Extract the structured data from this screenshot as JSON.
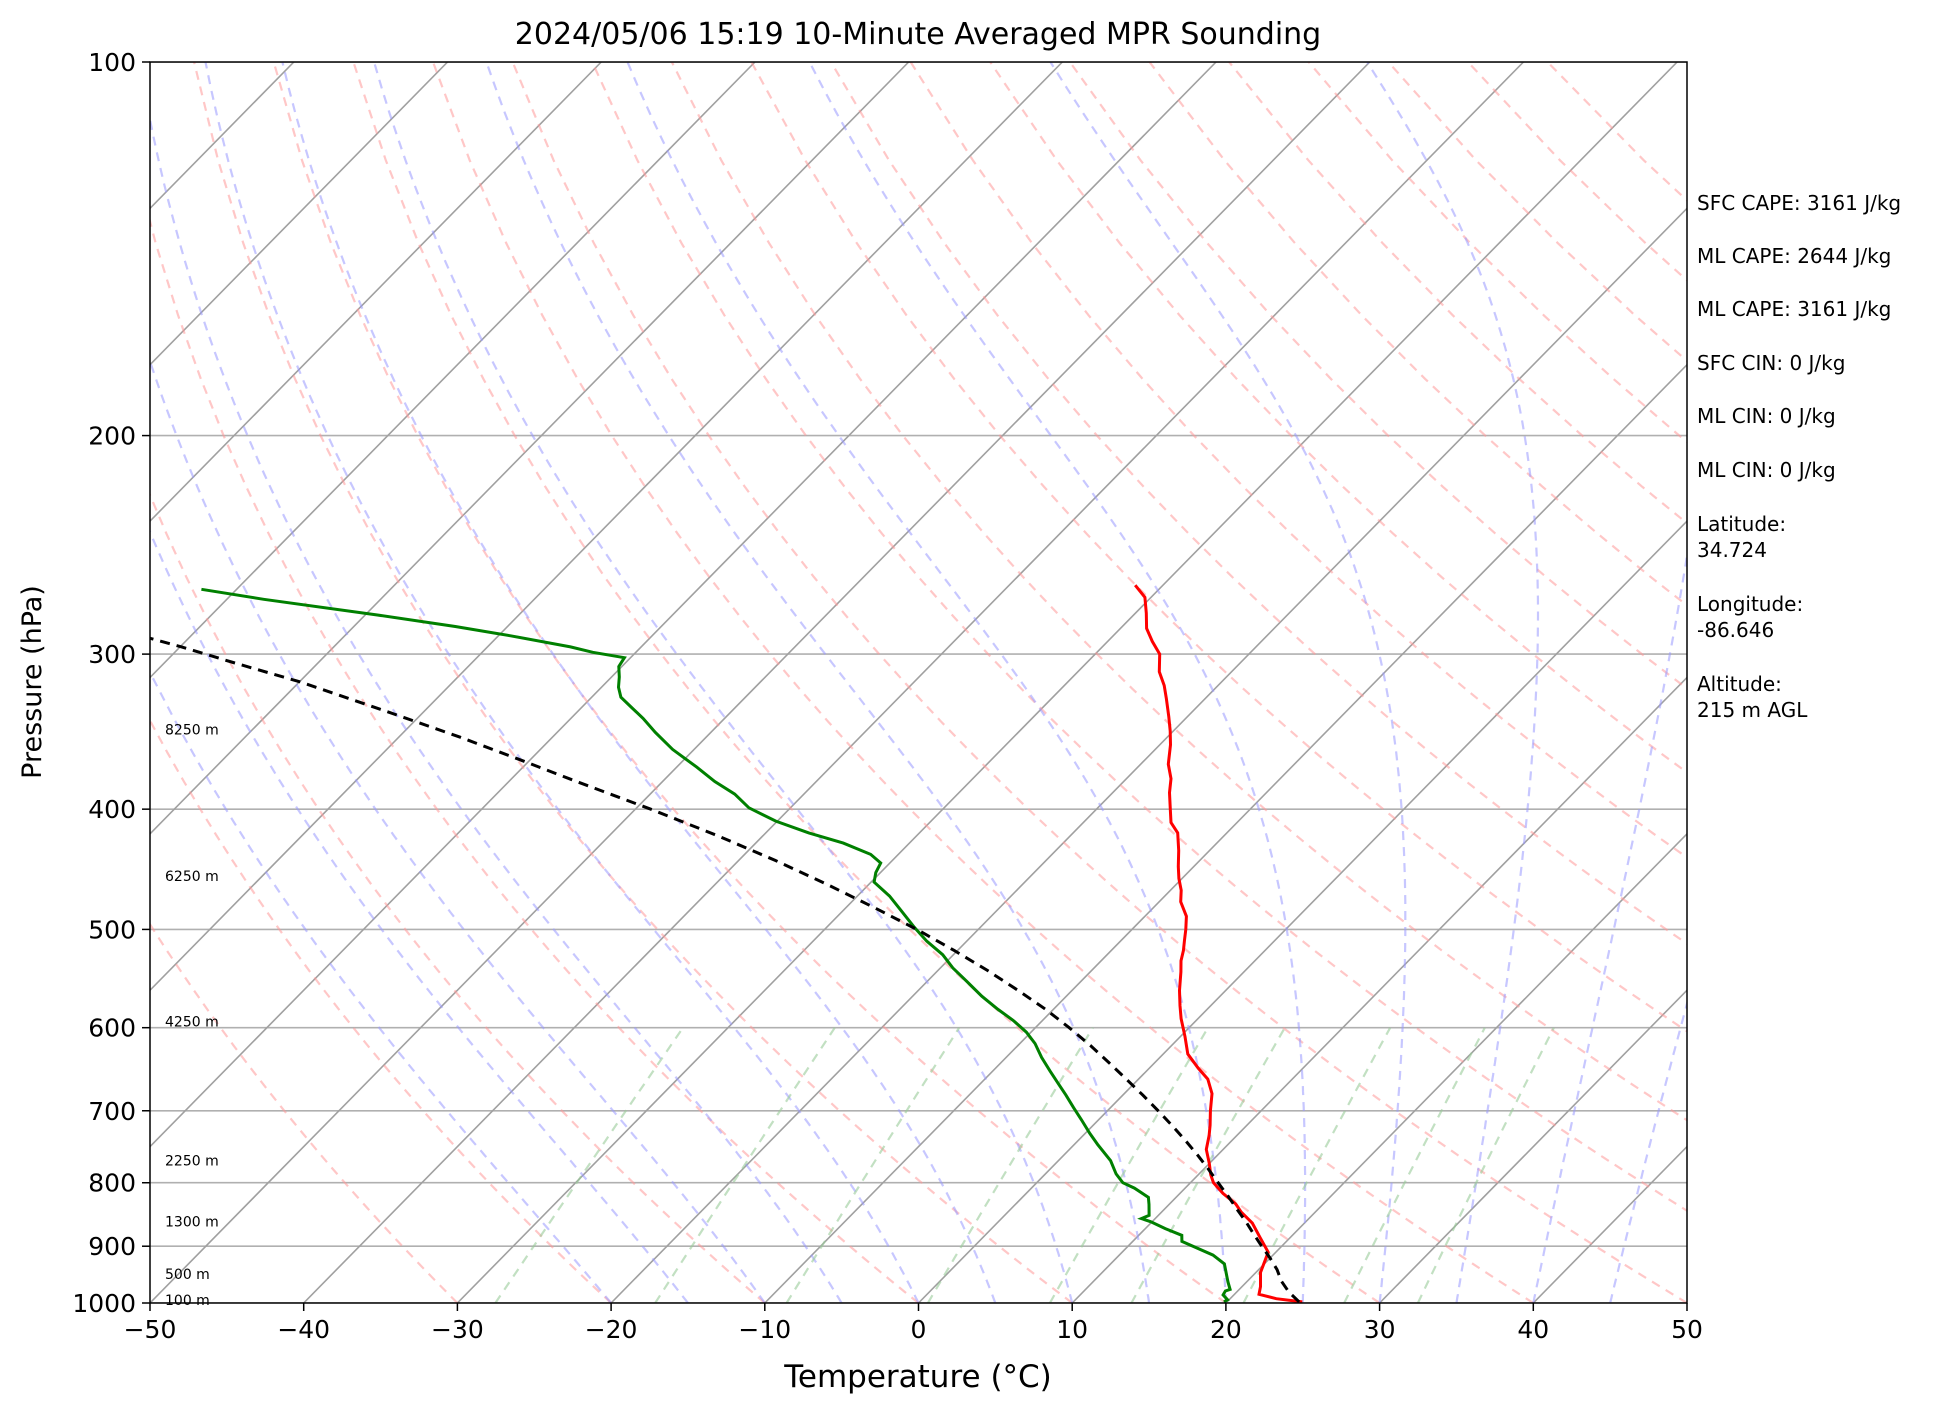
{
  "chart_data": {
    "type": "skew-t",
    "title": "2024/05/06 15:19 10-Minute Averaged MPR Sounding",
    "xlabel": "Temperature (°C)",
    "ylabel": "Pressure (hPa)",
    "xlim": [
      -50,
      50
    ],
    "ylim": [
      1000,
      100
    ],
    "y_scale": "log",
    "x_ticks": [
      "−50",
      "−40",
      "−30",
      "−20",
      "−10",
      "0",
      "10",
      "20",
      "30",
      "40",
      "50"
    ],
    "y_ticks": [
      {
        "p": 100,
        "label": "100"
      },
      {
        "p": 200,
        "label": "200"
      },
      {
        "p": 300,
        "label": "300"
      },
      {
        "p": 400,
        "label": "400"
      },
      {
        "p": 500,
        "label": "500"
      },
      {
        "p": 600,
        "label": "600"
      },
      {
        "p": 700,
        "label": "700"
      },
      {
        "p": 800,
        "label": "800"
      },
      {
        "p": 900,
        "label": "900"
      },
      {
        "p": 1000,
        "label": "1000"
      }
    ],
    "grid": true,
    "colors": {
      "temperature": "#ff0000",
      "dewpoint": "#008000",
      "parcel": "#000000",
      "dry_adiabats": "#ff9999",
      "moist_adiabats": "#9999ff",
      "mixing_ratio": "#99cc99",
      "isotherms": "#a0a0a0"
    },
    "height_labels": [
      {
        "p": 345,
        "label": "8250 m"
      },
      {
        "p": 453,
        "label": "6250 m"
      },
      {
        "p": 593,
        "label": "4250 m"
      },
      {
        "p": 768,
        "label": "2250 m"
      },
      {
        "p": 860,
        "label": "1300 m"
      },
      {
        "p": 948,
        "label": "500 m"
      },
      {
        "p": 994,
        "label": "100 m"
      }
    ],
    "series": [
      {
        "key": "temperature",
        "points": [
          [
            24.9,
            998
          ],
          [
            23,
            992
          ],
          [
            21.6,
            984
          ],
          [
            21.2,
            970
          ],
          [
            20.3,
            945
          ],
          [
            19.5,
            910
          ],
          [
            18,
            885
          ],
          [
            16.6,
            862
          ],
          [
            15.2,
            845
          ],
          [
            14.3,
            832
          ],
          [
            12.8,
            816
          ],
          [
            11.5,
            800
          ],
          [
            10.8,
            788
          ],
          [
            10,
            772
          ],
          [
            8.9,
            752
          ],
          [
            8.2,
            733
          ],
          [
            7.6,
            719
          ],
          [
            6.7,
            700
          ],
          [
            5.7,
            678
          ],
          [
            4.5,
            660
          ],
          [
            3.2,
            647
          ],
          [
            1.6,
            630
          ],
          [
            0.3,
            610
          ],
          [
            -1.1,
            590
          ],
          [
            -2,
            576
          ],
          [
            -3,
            560
          ],
          [
            -4.1,
            541
          ],
          [
            -4.8,
            530
          ],
          [
            -5.3,
            520
          ],
          [
            -5.9,
            510
          ],
          [
            -6.5,
            500
          ],
          [
            -7.3,
            488
          ],
          [
            -8.6,
            475
          ],
          [
            -9.3,
            465
          ],
          [
            -10.2,
            455
          ],
          [
            -11,
            445
          ],
          [
            -12,
            432
          ],
          [
            -13.2,
            418
          ],
          [
            -14.3,
            410
          ],
          [
            -15.2,
            400
          ],
          [
            -16.3,
            388
          ],
          [
            -17.1,
            378
          ],
          [
            -18.2,
            368
          ],
          [
            -19.3,
            355
          ],
          [
            -20.2,
            346
          ],
          [
            -21.2,
            337
          ],
          [
            -22.5,
            326
          ],
          [
            -23.5,
            318
          ],
          [
            -24.7,
            310
          ],
          [
            -25.8,
            300
          ],
          [
            -27.1,
            293
          ],
          [
            -28.3,
            286
          ],
          [
            -29.3,
            278
          ],
          [
            -30.4,
            270
          ],
          [
            -31.8,
            264
          ]
        ]
      },
      {
        "key": "dewpoint",
        "points": [
          [
            19.8,
            998
          ],
          [
            19.9,
            994
          ],
          [
            19.3,
            985
          ],
          [
            19.2,
            978
          ],
          [
            19.4,
            975
          ],
          [
            18.8,
            962
          ],
          [
            18.5,
            955
          ],
          [
            17.4,
            930
          ],
          [
            16.1,
            915
          ],
          [
            13.2,
            892
          ],
          [
            12.8,
            882
          ],
          [
            11.3,
            871
          ],
          [
            9.9,
            860
          ],
          [
            9.1,
            855
          ],
          [
            9.4,
            850
          ],
          [
            8.7,
            833
          ],
          [
            8.2,
            822
          ],
          [
            6.7,
            808
          ],
          [
            5.6,
            800
          ],
          [
            4.6,
            787
          ],
          [
            3.4,
            768
          ],
          [
            1.5,
            745
          ],
          [
            0.3,
            730
          ],
          [
            -1.1,
            712
          ],
          [
            -2.4,
            696
          ],
          [
            -3.7,
            680
          ],
          [
            -4.9,
            666
          ],
          [
            -6.3,
            650
          ],
          [
            -7.7,
            634
          ],
          [
            -9,
            618
          ],
          [
            -10.3,
            605
          ],
          [
            -11.9,
            592
          ],
          [
            -13.6,
            580
          ],
          [
            -15.5,
            566
          ],
          [
            -17.5,
            550
          ],
          [
            -19.2,
            537
          ],
          [
            -20.7,
            524
          ],
          [
            -22.6,
            511
          ],
          [
            -24.3,
            498
          ],
          [
            -26.2,
            483
          ],
          [
            -27.9,
            470
          ],
          [
            -29.8,
            458
          ],
          [
            -30.3,
            450
          ],
          [
            -30.6,
            442
          ],
          [
            -31.8,
            435
          ],
          [
            -34.3,
            426
          ],
          [
            -37.2,
            418
          ],
          [
            -40.1,
            409
          ],
          [
            -42.7,
            399
          ],
          [
            -44.5,
            389
          ],
          [
            -46.6,
            380
          ],
          [
            -48.7,
            370
          ],
          [
            -51.4,
            358
          ],
          [
            -53.6,
            347
          ],
          [
            -55.3,
            338
          ],
          [
            -56.8,
            331
          ],
          [
            -58.1,
            325
          ],
          [
            -58.9,
            319
          ],
          [
            -59.5,
            313
          ],
          [
            -60.2,
            307
          ],
          [
            -60.4,
            302
          ],
          [
            -62.8,
            299
          ],
          [
            -64.6,
            296
          ],
          [
            -69.2,
            290
          ],
          [
            -73.4,
            285
          ],
          [
            -79.2,
            279
          ],
          [
            -87.6,
            271
          ],
          [
            -92.3,
            266
          ]
        ]
      },
      {
        "key": "parcel",
        "points": [
          [
            24.7,
            998
          ],
          [
            23.4,
            980
          ],
          [
            22.2,
            960
          ],
          [
            21.2,
            940
          ],
          [
            20,
            920
          ],
          [
            18.7,
            900
          ],
          [
            17.4,
            880
          ],
          [
            16.1,
            860
          ],
          [
            14.7,
            840
          ],
          [
            13.3,
            820
          ],
          [
            11.8,
            800
          ],
          [
            10.3,
            780
          ],
          [
            8.7,
            760
          ],
          [
            7,
            740
          ],
          [
            5.2,
            720
          ],
          [
            3.3,
            700
          ],
          [
            1.3,
            680
          ],
          [
            -0.8,
            660
          ],
          [
            -3,
            640
          ],
          [
            -5.3,
            620
          ],
          [
            -7.8,
            600
          ],
          [
            -10.5,
            580
          ],
          [
            -13.5,
            560
          ],
          [
            -16.7,
            540
          ],
          [
            -20.2,
            520
          ],
          [
            -24,
            500
          ],
          [
            -28.2,
            480
          ],
          [
            -32.7,
            460
          ],
          [
            -37.6,
            440
          ],
          [
            -43,
            420
          ],
          [
            -49,
            400
          ],
          [
            -55.6,
            380
          ],
          [
            -60.3,
            366
          ],
          [
            -66,
            350
          ],
          [
            -72.7,
            333
          ],
          [
            -79.9,
            316
          ],
          [
            -85.4,
            305
          ],
          [
            -89.9,
            296
          ],
          [
            -97.2,
            283
          ],
          [
            -103.3,
            271
          ],
          [
            -104.3,
            268
          ]
        ]
      }
    ]
  },
  "stats": {
    "sfc_cape": "SFC CAPE: 3161 J/kg",
    "ml_cape_1": "ML CAPE: 2644 J/kg",
    "ml_cape_2": "ML CAPE: 3161 J/kg",
    "sfc_cin": "SFC CIN: 0 J/kg",
    "ml_cin_1": "ML CIN: 0 J/kg",
    "ml_cin_2": "ML CIN: 0 J/kg",
    "latitude_label": "Latitude:",
    "latitude_value": "34.724",
    "longitude_label": "Longitude:",
    "longitude_value": "-86.646",
    "altitude_label": "Altitude:",
    "altitude_value": "215 m AGL"
  }
}
